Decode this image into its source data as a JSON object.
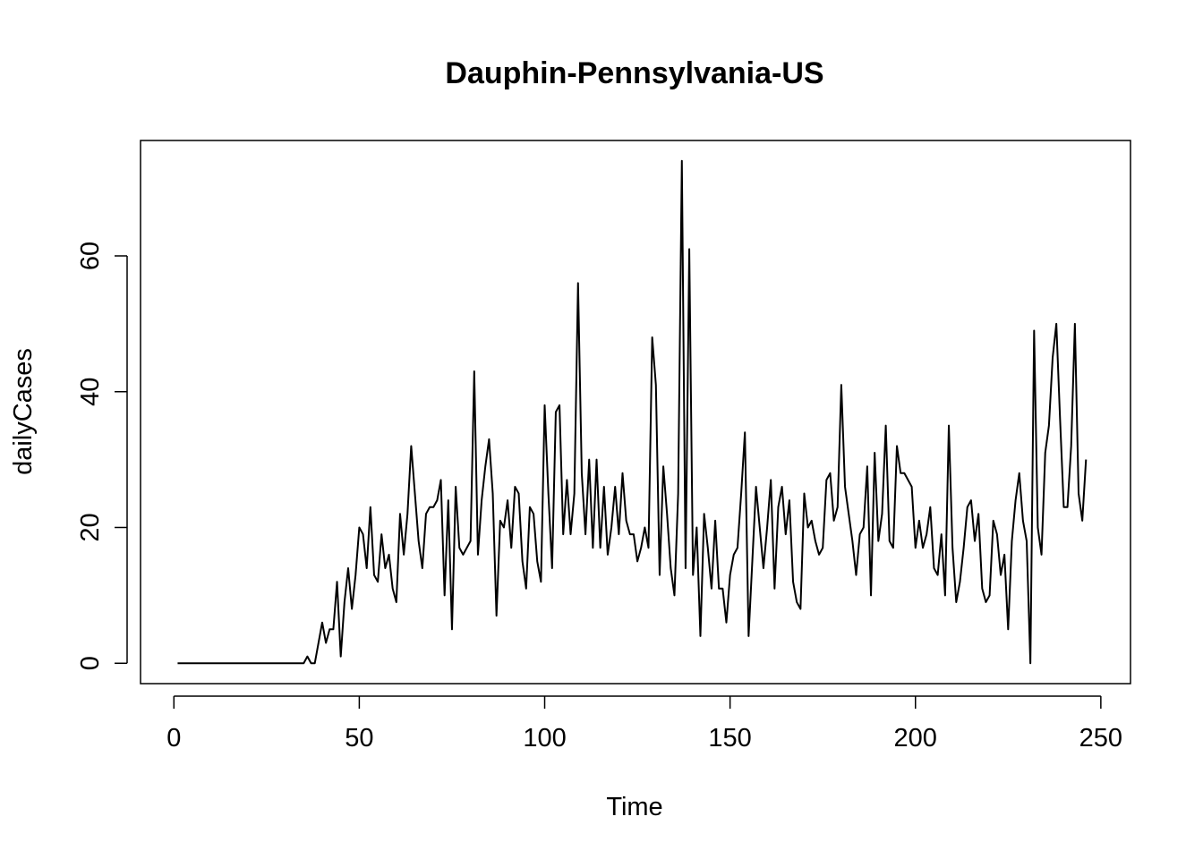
{
  "chart_data": {
    "type": "line",
    "title": "Dauphin-Pennsylvania-US",
    "xlabel": "Time",
    "ylabel": "dailyCases",
    "xlim": [
      -9,
      258
    ],
    "ylim": [
      -3,
      77
    ],
    "xticks": [
      0,
      50,
      100,
      150,
      200,
      250
    ],
    "yticks": [
      0,
      20,
      40,
      60
    ],
    "grid": false,
    "series": [
      {
        "color": "#000000",
        "x_start": 1,
        "values": [
          0,
          0,
          0,
          0,
          0,
          0,
          0,
          0,
          0,
          0,
          0,
          0,
          0,
          0,
          0,
          0,
          0,
          0,
          0,
          0,
          0,
          0,
          0,
          0,
          0,
          0,
          0,
          0,
          0,
          0,
          0,
          0,
          0,
          0,
          0,
          1,
          0,
          0,
          3,
          6,
          3,
          5,
          5,
          12,
          1,
          9,
          14,
          8,
          13,
          20,
          19,
          14,
          23,
          13,
          12,
          19,
          14,
          16,
          11,
          9,
          22,
          16,
          22,
          32,
          25,
          18,
          14,
          22,
          23,
          23,
          24,
          27,
          10,
          24,
          5,
          26,
          17,
          16,
          17,
          18,
          43,
          16,
          24,
          29,
          33,
          25,
          7,
          21,
          20,
          24,
          17,
          26,
          25,
          15,
          11,
          23,
          22,
          15,
          12,
          38,
          25,
          14,
          37,
          38,
          19,
          27,
          19,
          25,
          56,
          28,
          19,
          30,
          17,
          30,
          17,
          26,
          16,
          20,
          26,
          19,
          28,
          21,
          19,
          19,
          15,
          17,
          20,
          17,
          48,
          41,
          13,
          29,
          22,
          14,
          10,
          25,
          74,
          14,
          61,
          13,
          20,
          4,
          22,
          17,
          11,
          21,
          11,
          11,
          6,
          13,
          16,
          17,
          25,
          34,
          4,
          15,
          26,
          20,
          14,
          20,
          27,
          11,
          23,
          26,
          19,
          24,
          12,
          9,
          8,
          25,
          20,
          21,
          18,
          16,
          17,
          27,
          28,
          21,
          23,
          41,
          26,
          22,
          18,
          13,
          19,
          20,
          29,
          10,
          31,
          18,
          22,
          35,
          18,
          17,
          32,
          28,
          28,
          27,
          26,
          17,
          21,
          17,
          19,
          23,
          14,
          13,
          19,
          10,
          35,
          17,
          9,
          12,
          17,
          23,
          24,
          18,
          22,
          11,
          9,
          10,
          21,
          19,
          13,
          16,
          5,
          18,
          24,
          28,
          21,
          18,
          0,
          49,
          20,
          16,
          31,
          35,
          45,
          50,
          36,
          23,
          23,
          32,
          50,
          25,
          21,
          30
        ]
      }
    ]
  }
}
